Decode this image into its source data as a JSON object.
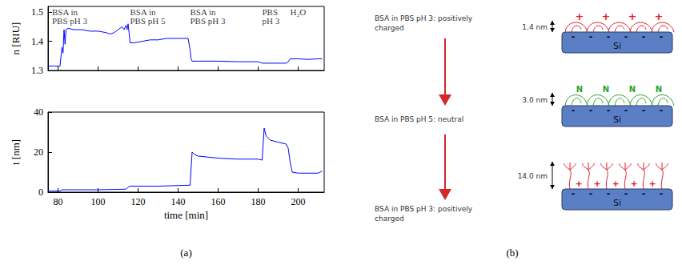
{
  "chart_data": [
    {
      "type": "line",
      "y_label": "n [RIU]",
      "color": "#0000ff",
      "grid": false,
      "tick_labels": "y",
      "xlim": [
        75,
        213
      ],
      "xticks": [
        80,
        100,
        120,
        140,
        160,
        180,
        200
      ],
      "ylim": [
        1.3,
        1.52
      ],
      "yticks": [
        1.3,
        1.4,
        1.5
      ],
      "x": [
        75,
        78,
        81,
        81.5,
        82,
        82.5,
        83,
        83.5,
        84,
        85,
        88,
        92,
        96,
        100,
        104,
        106,
        108,
        110,
        112,
        113,
        114,
        114.5,
        115,
        115.5,
        116,
        118,
        122,
        126,
        130,
        134,
        138,
        142,
        145,
        146,
        146.5,
        147,
        150,
        160,
        170,
        180,
        181,
        182,
        185,
        190,
        194,
        195,
        196,
        200,
        205,
        210,
        212
      ],
      "values": [
        1.315,
        1.315,
        1.315,
        1.35,
        1.38,
        1.36,
        1.44,
        1.39,
        1.44,
        1.445,
        1.44,
        1.44,
        1.435,
        1.435,
        1.43,
        1.425,
        1.43,
        1.44,
        1.45,
        1.44,
        1.455,
        1.44,
        1.46,
        1.43,
        1.395,
        1.395,
        1.4,
        1.405,
        1.405,
        1.41,
        1.41,
        1.41,
        1.41,
        1.37,
        1.34,
        1.332,
        1.332,
        1.332,
        1.33,
        1.33,
        1.328,
        1.325,
        1.325,
        1.325,
        1.325,
        1.33,
        1.34,
        1.34,
        1.338,
        1.34,
        1.34
      ],
      "annotations": [
        {
          "text": "BSA in\nPBS pH 3",
          "x": 77,
          "y": 1.517
        },
        {
          "text": "BSA in\nPBS pH 5",
          "x": 116,
          "y": 1.517
        },
        {
          "text": "BSA in\nPBS pH 3",
          "x": 146,
          "y": 1.517
        },
        {
          "text": "PBS\npH 3",
          "x": 182,
          "y": 1.517
        },
        {
          "text": "H₂O",
          "x": 196,
          "y": 1.517
        }
      ]
    },
    {
      "type": "line",
      "x_label": "time [min]",
      "y_label": "t [nm]",
      "color": "#0000ff",
      "grid": false,
      "xlim": [
        75,
        213
      ],
      "xticks": [
        80,
        100,
        120,
        140,
        160,
        180,
        200
      ],
      "ylim": [
        0,
        40
      ],
      "yticks": [
        0,
        20,
        40
      ],
      "x": [
        75,
        80,
        81,
        82,
        100,
        114,
        115,
        116,
        130,
        146,
        146.5,
        147,
        148,
        150,
        160,
        170,
        180,
        182,
        183,
        184,
        186,
        190,
        194,
        195,
        196,
        197,
        200,
        205,
        210,
        212
      ],
      "values": [
        0.5,
        0.5,
        0.5,
        1.2,
        1.2,
        1.5,
        2.5,
        3,
        3,
        3.5,
        12,
        20,
        19,
        18,
        17,
        16.5,
        16.5,
        16,
        32,
        28,
        26,
        25,
        24,
        22,
        15,
        10,
        9.5,
        9.5,
        9.5,
        10.5
      ]
    }
  ],
  "captions": [
    "(a)",
    "(b)"
  ],
  "diagram": {
    "steps": [
      {
        "label": "BSA in PBS pH 3: positively charged",
        "thickness": "1.4 nm",
        "protein_sign": "+",
        "surface_sign": "-",
        "substrate": "Si"
      },
      {
        "label": "BSA in PBS pH 5: neutral",
        "thickness": "3.0 nm",
        "protein_sign": "N",
        "surface_sign": "-",
        "substrate": "Si"
      },
      {
        "label": "BSA in PBS pH 3: positively charged",
        "thickness": "14.0 nm",
        "protein_sign": "+",
        "surface_sign": "-",
        "substrate": "Si"
      }
    ]
  }
}
